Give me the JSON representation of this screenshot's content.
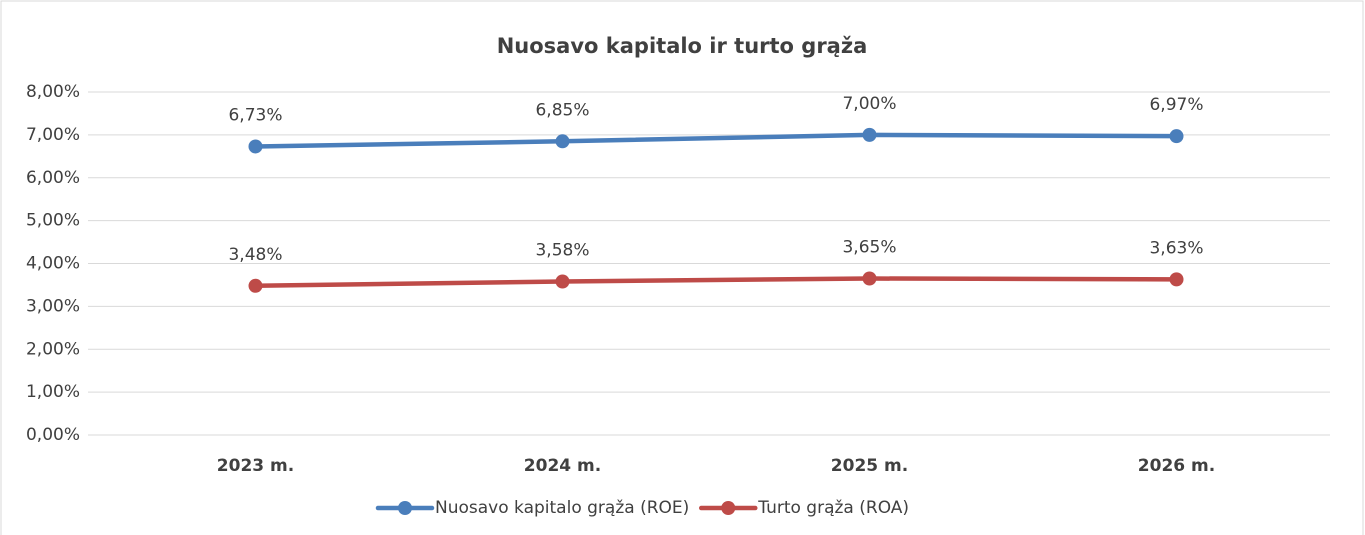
{
  "chart_data": {
    "type": "line",
    "title": "Nuosavo kapitalo ir turto grąža",
    "categories": [
      "2023 m.",
      "2024 m.",
      "2025 m.",
      "2026 m."
    ],
    "series": [
      {
        "name": "Nuosavo kapitalo grąža (ROE)",
        "color": "#4a7ebb",
        "values": [
          6.73,
          6.85,
          7.0,
          6.97
        ],
        "value_labels": [
          "6,73%",
          "6,85%",
          "7,00%",
          "6,97%"
        ]
      },
      {
        "name": "Turto grąža (ROA)",
        "color": "#be4b48",
        "values": [
          3.48,
          3.58,
          3.65,
          3.63
        ],
        "value_labels": [
          "3,48%",
          "3,58%",
          "3,65%",
          "3,63%"
        ]
      }
    ],
    "ylim": [
      0,
      8
    ],
    "yticks": [
      {
        "value": 0,
        "label": "0,00%"
      },
      {
        "value": 1,
        "label": "1,00%"
      },
      {
        "value": 2,
        "label": "2,00%"
      },
      {
        "value": 3,
        "label": "3,00%"
      },
      {
        "value": 4,
        "label": "4,00%"
      },
      {
        "value": 5,
        "label": "5,00%"
      },
      {
        "value": 6,
        "label": "6,00%"
      },
      {
        "value": 7,
        "label": "7,00%"
      },
      {
        "value": 8,
        "label": "8,00%"
      }
    ],
    "grid": true,
    "legend": "bottom"
  }
}
